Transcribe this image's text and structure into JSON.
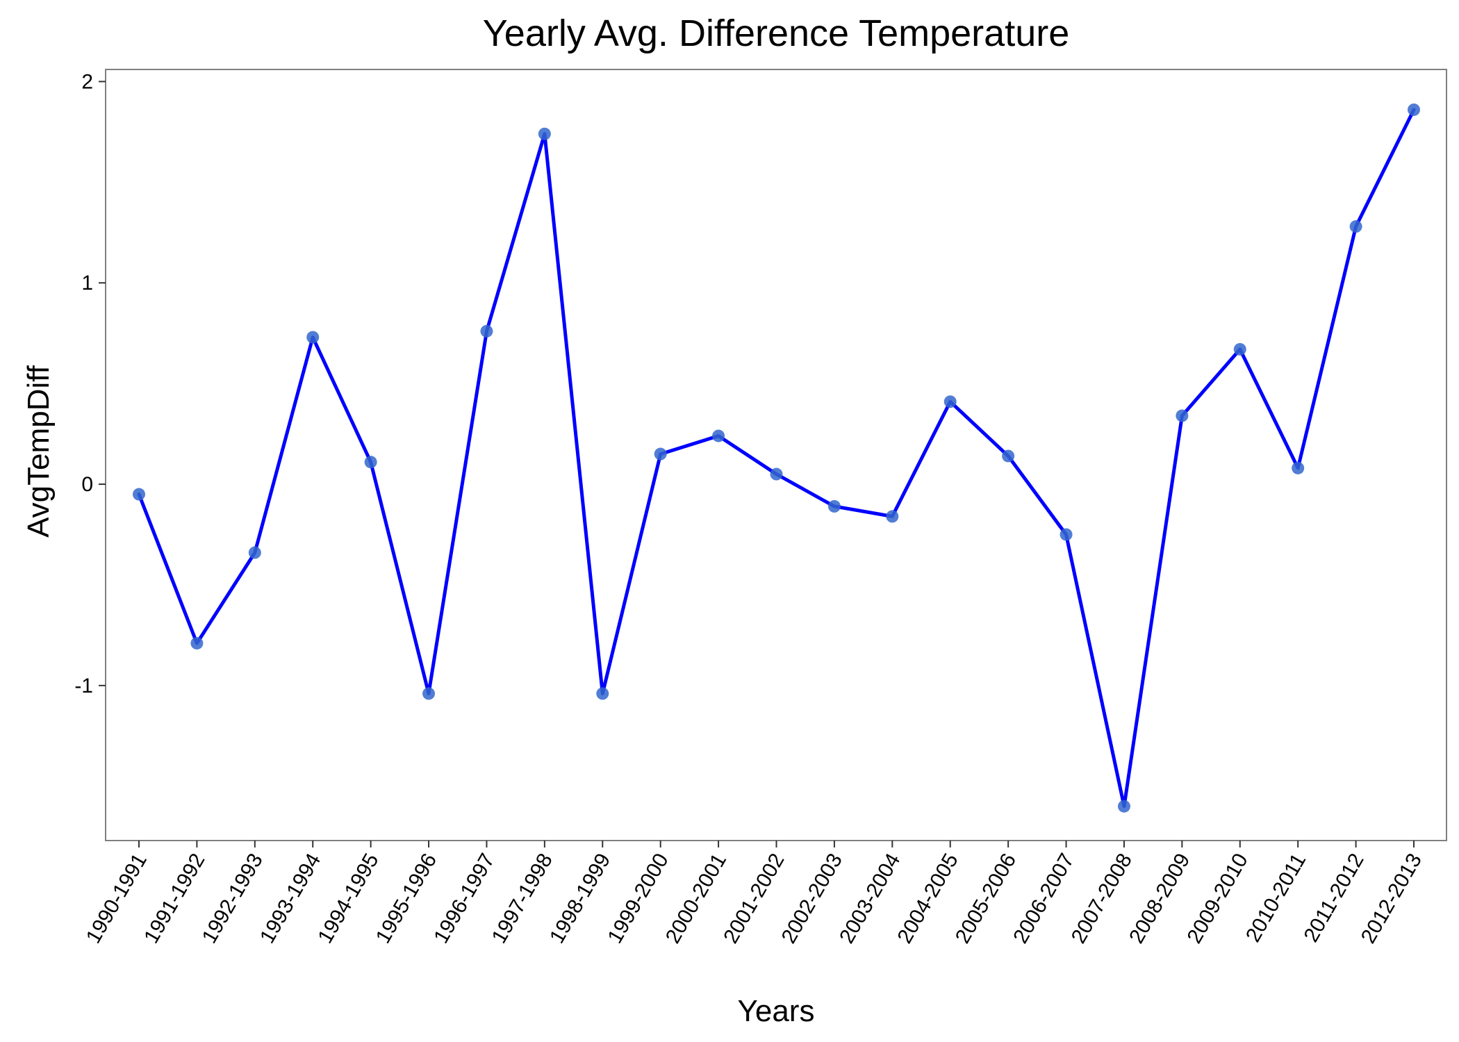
{
  "chart_data": {
    "type": "line",
    "title": "Yearly Avg. Difference Temperature",
    "xlabel": "Years",
    "ylabel": "AvgTempDiff",
    "x": [
      "1990-1991",
      "1991-1992",
      "1992-1993",
      "1993-1994",
      "1994-1995",
      "1995-1996",
      "1996-1997",
      "1997-1998",
      "1998-1999",
      "1999-2000",
      "2000-2001",
      "2001-2002",
      "2002-2003",
      "2003-2004",
      "2004-2005",
      "2005-2006",
      "2006-2007",
      "2007-2008",
      "2008-2009",
      "2009-2010",
      "2010-2011",
      "2011-2012",
      "2012-2013"
    ],
    "series": [
      {
        "values": [
          -0.05,
          -0.79,
          -0.34,
          0.73,
          0.11,
          -1.04,
          0.76,
          1.74,
          -1.04,
          0.15,
          0.24,
          0.05,
          -0.11,
          -0.16,
          0.41,
          0.14,
          -0.25,
          -1.6,
          0.34,
          0.67,
          0.08,
          1.28,
          1.86
        ]
      }
    ],
    "yticks": [
      -1,
      0,
      1,
      2
    ],
    "ytick_labels": [
      "-1",
      "0",
      "1",
      "2"
    ],
    "ylim": [
      -1.77,
      2.06
    ],
    "grid": false,
    "line_color": "#0000FF",
    "point_color": "#3366CC"
  }
}
